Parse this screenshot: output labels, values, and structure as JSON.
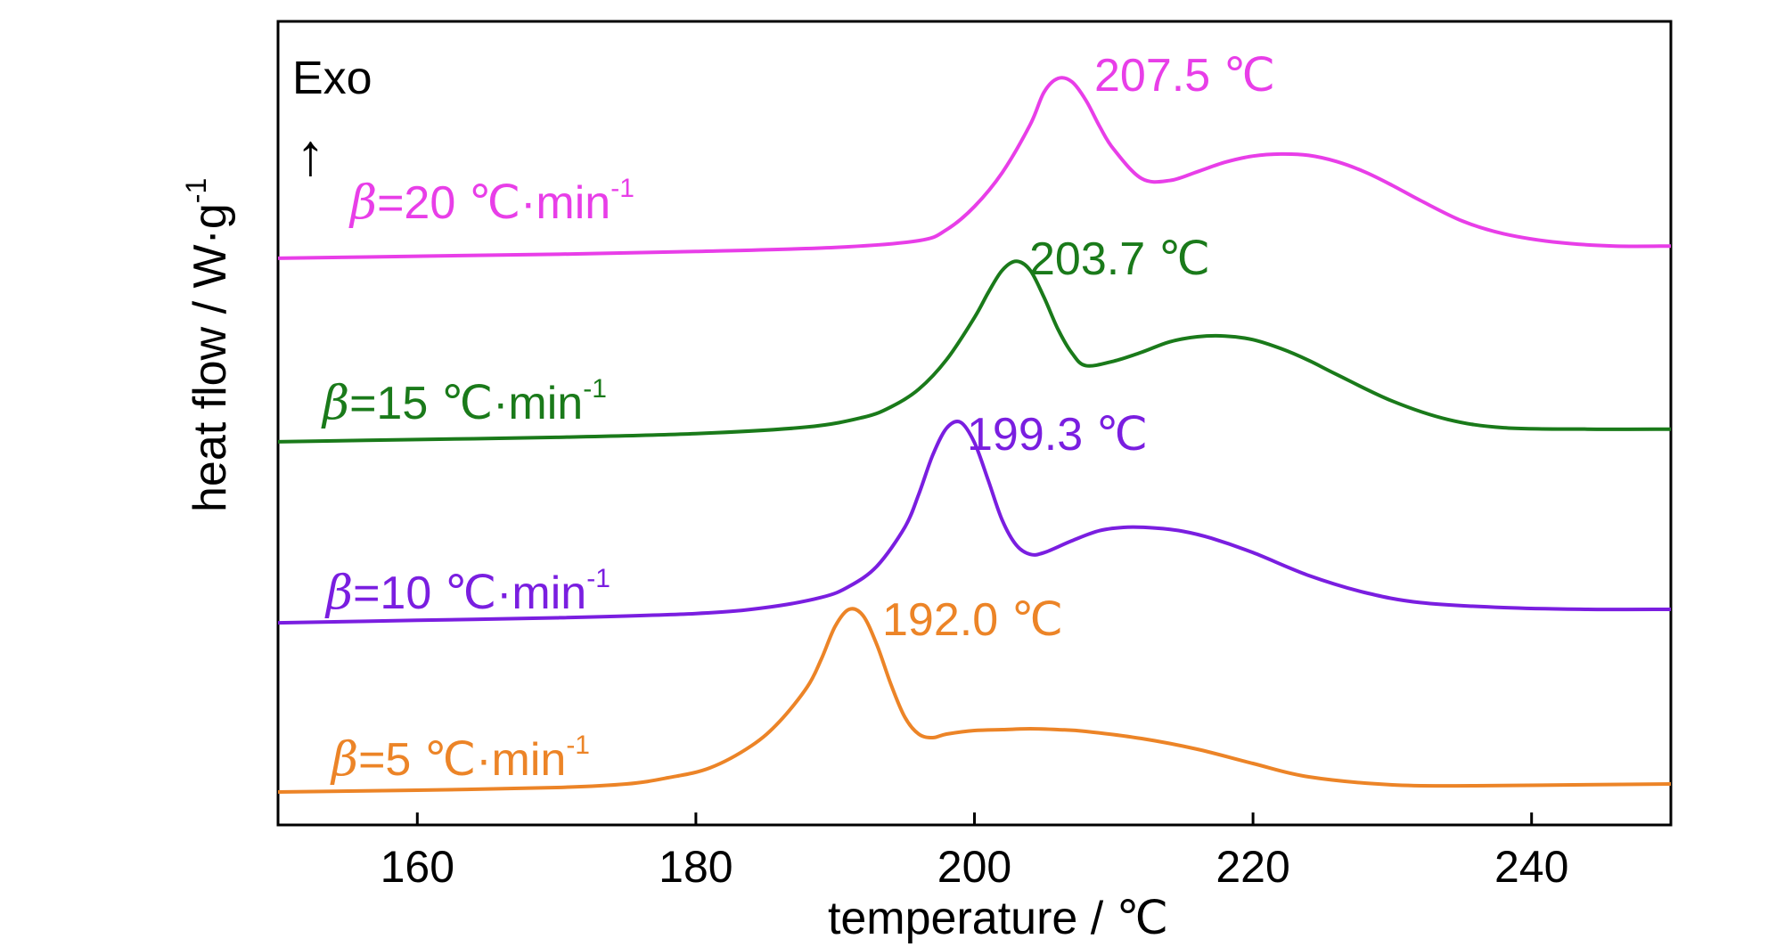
{
  "chart_data": {
    "type": "line",
    "xlabel": "temperature / ℃",
    "ylabel": "heat flow / W·g",
    "ylabel_sup": "-1",
    "xlim": [
      150,
      250
    ],
    "x_ticks": [
      "160",
      "180",
      "200",
      "220",
      "240"
    ],
    "exo_label": "Exo",
    "exo_arrow": "↑",
    "grid": false,
    "series": [
      {
        "name": "β=20 ℃·min-1",
        "rate_prefix": "β",
        "rate_text": "=20 ℃·min",
        "rate_sup": "-1",
        "peak_label": "207.5 ℃",
        "color": "#e83ee8",
        "x": [
          150,
          160,
          170,
          180,
          190,
          196,
          198,
          200,
          202,
          204,
          205,
          206,
          207,
          208,
          209,
          210,
          212,
          214,
          216,
          218,
          220,
          222,
          224,
          226,
          228,
          230,
          232,
          235,
          238,
          242,
          246,
          250
        ],
        "y": [
          0.4,
          0.7,
          1.0,
          1.4,
          2.0,
          3.0,
          4.6,
          8.0,
          13.0,
          20.0,
          24.8,
          26.8,
          26.3,
          23.6,
          19.7,
          16.4,
          12.1,
          11.8,
          13.1,
          14.5,
          15.4,
          15.7,
          15.5,
          14.6,
          13.1,
          11.1,
          8.9,
          5.9,
          4.0,
          2.7,
          2.2,
          2.2
        ]
      },
      {
        "name": "β=15 ℃·min-1",
        "rate_prefix": "β",
        "rate_text": "=15 ℃·min",
        "rate_sup": "-1",
        "peak_label": "203.7 ℃",
        "color": "#1a7a1a",
        "x": [
          150,
          160,
          170,
          180,
          188,
          192,
          194,
          196,
          198,
          200,
          201,
          202,
          203,
          204,
          205,
          206,
          207,
          208,
          210,
          212,
          214,
          216,
          218,
          220,
          222,
          224,
          226,
          230,
          234,
          238,
          244,
          250
        ],
        "y": [
          0.5,
          0.8,
          1.1,
          1.6,
          2.5,
          3.8,
          5.2,
          7.6,
          11.6,
          17.3,
          20.7,
          23.7,
          24.9,
          23.7,
          20.0,
          15.7,
          12.5,
          10.8,
          11.4,
          12.6,
          14.0,
          14.7,
          14.8,
          14.3,
          13.1,
          11.5,
          9.6,
          6.0,
          3.5,
          2.4,
          2.2,
          2.2
        ]
      },
      {
        "name": "β=10 ℃·min-1",
        "rate_prefix": "β",
        "rate_text": "=10 ℃·min",
        "rate_sup": "-1",
        "peak_label": "199.3 ℃",
        "color": "#7a1ee0",
        "x": [
          150,
          160,
          170,
          180,
          185,
          189,
          191,
          193,
          195,
          196,
          197,
          198,
          199,
          200,
          201,
          202,
          203,
          204,
          205,
          207,
          209,
          211,
          213,
          215,
          217,
          220,
          224,
          228,
          232,
          238,
          244,
          250
        ],
        "y": [
          0.3,
          0.6,
          0.9,
          1.4,
          2.1,
          3.3,
          4.6,
          7.0,
          11.6,
          15.5,
          20.1,
          23.3,
          24.0,
          21.6,
          17.1,
          12.4,
          9.5,
          8.4,
          8.6,
          10.0,
          11.2,
          11.6,
          11.5,
          11.1,
          10.3,
          8.6,
          5.9,
          3.9,
          2.7,
          2.1,
          1.9,
          1.9
        ]
      },
      {
        "name": "β=5 ℃·min-1",
        "rate_prefix": "β",
        "rate_text": "=5 ℃·min",
        "rate_sup": "-1",
        "peak_label": "192.0 ℃",
        "color": "#ec8427",
        "x": [
          150,
          160,
          170,
          175,
          178,
          181,
          184,
          186,
          188,
          189,
          190,
          191,
          192,
          193,
          194,
          195,
          196,
          197,
          198,
          200,
          202,
          204,
          206,
          208,
          212,
          216,
          220,
          224,
          230,
          236,
          243,
          250
        ],
        "y": [
          0.1,
          0.3,
          0.6,
          1.0,
          1.7,
          2.8,
          5.3,
          8.0,
          11.9,
          15.0,
          18.7,
          20.6,
          19.9,
          16.6,
          12.2,
          8.5,
          6.6,
          6.2,
          6.6,
          7.0,
          7.1,
          7.2,
          7.1,
          6.9,
          6.1,
          4.9,
          3.3,
          1.8,
          0.9,
          0.8,
          0.9,
          1.0
        ]
      }
    ]
  }
}
